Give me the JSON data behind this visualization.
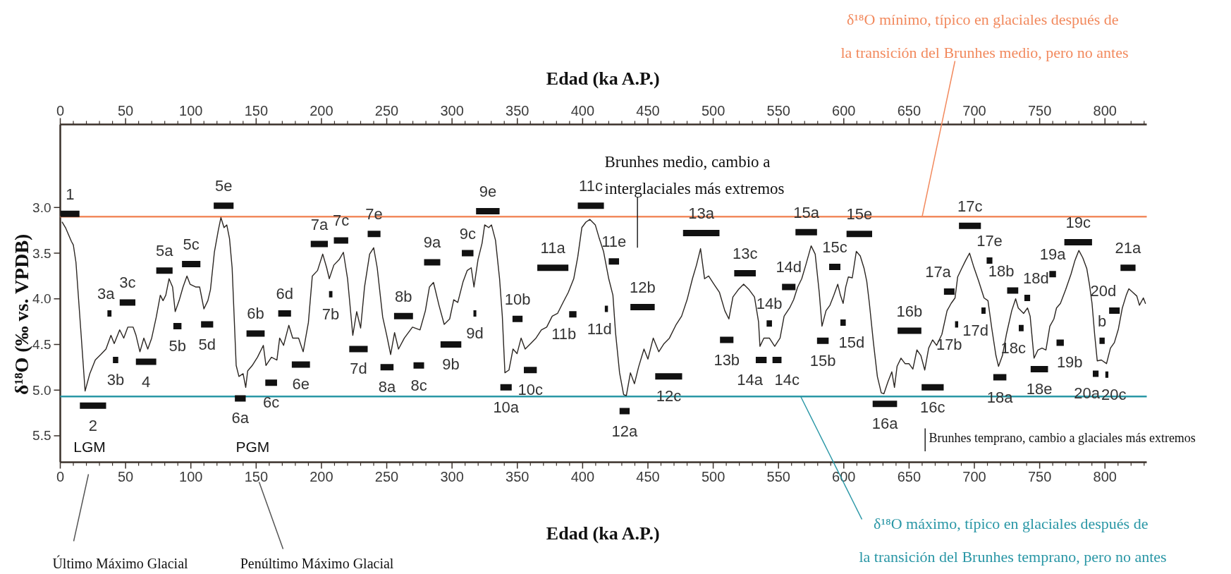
{
  "chart_data": {
    "type": "line",
    "xlabel": "Edad (ka A.P.)",
    "x2label": "Edad (ka A.P.)",
    "ylabel": "δ¹⁸O (‰ vs. VPDB)",
    "xlim": [
      0,
      832
    ],
    "x2lim": [
      0,
      832
    ],
    "ylim": [
      5.79,
      2.09
    ],
    "xticks": [
      0,
      {
        "value": 10,
        "label": null
      },
      {
        "value": 20,
        "label": null
      },
      {
        "value": 30,
        "label": null
      },
      {
        "value": 40,
        "label": null
      },
      50,
      {
        "value": 60,
        "label": null
      },
      {
        "value": 70,
        "label": null
      },
      {
        "value": 80,
        "label": null
      },
      {
        "value": 90,
        "label": null
      },
      100,
      {
        "value": 110,
        "label": null
      },
      {
        "value": 120,
        "label": null
      },
      {
        "value": 130,
        "label": null
      },
      {
        "value": 140,
        "label": null
      },
      150,
      {
        "value": 160,
        "label": null
      },
      {
        "value": 170,
        "label": null
      },
      {
        "value": 180,
        "label": null
      },
      {
        "value": 190,
        "label": null
      },
      200,
      {
        "value": 210,
        "label": null
      },
      {
        "value": 220,
        "label": null
      },
      {
        "value": 230,
        "label": null
      },
      {
        "value": 240,
        "label": null
      },
      250,
      {
        "value": 260,
        "label": null
      },
      {
        "value": 270,
        "label": null
      },
      {
        "value": 280,
        "label": null
      },
      {
        "value": 290,
        "label": null
      },
      300,
      {
        "value": 310,
        "label": null
      },
      {
        "value": 320,
        "label": null
      },
      {
        "value": 330,
        "label": null
      },
      {
        "value": 340,
        "label": null
      },
      350,
      {
        "value": 360,
        "label": null
      },
      {
        "value": 370,
        "label": null
      },
      {
        "value": 380,
        "label": null
      },
      {
        "value": 390,
        "label": null
      },
      400,
      {
        "value": 410,
        "label": null
      },
      {
        "value": 420,
        "label": null
      },
      {
        "value": 430,
        "label": null
      },
      {
        "value": 440,
        "label": null
      },
      450,
      {
        "value": 460,
        "label": null
      },
      {
        "value": 470,
        "label": null
      },
      {
        "value": 480,
        "label": null
      },
      {
        "value": 490,
        "label": null
      },
      500,
      {
        "value": 510,
        "label": null
      },
      {
        "value": 520,
        "label": null
      },
      {
        "value": 530,
        "label": null
      },
      {
        "value": 540,
        "label": null
      },
      550,
      {
        "value": 560,
        "label": null
      },
      {
        "value": 570,
        "label": null
      },
      {
        "value": 580,
        "label": null
      },
      {
        "value": 590,
        "label": null
      },
      600,
      {
        "value": 610,
        "label": null
      },
      {
        "value": 620,
        "label": null
      },
      {
        "value": 630,
        "label": null
      },
      {
        "value": 640,
        "label": null
      },
      650,
      {
        "value": 660,
        "label": null
      },
      {
        "value": 670,
        "label": null
      },
      {
        "value": 680,
        "label": null
      },
      {
        "value": 690,
        "label": null
      },
      700,
      {
        "value": 710,
        "label": null
      },
      {
        "value": 720,
        "label": null
      },
      {
        "value": 730,
        "label": null
      },
      {
        "value": 740,
        "label": null
      },
      750,
      {
        "value": 760,
        "label": null
      },
      {
        "value": 770,
        "label": null
      },
      {
        "value": 780,
        "label": null
      },
      {
        "value": 790,
        "label": null
      },
      800,
      {
        "value": 810,
        "label": null
      },
      {
        "value": 820,
        "label": null
      },
      {
        "value": 830,
        "label": null
      }
    ],
    "x2ticks": [
      0,
      {
        "value": 10,
        "label": null
      },
      {
        "value": 20,
        "label": null
      },
      {
        "value": 30,
        "label": null
      },
      {
        "value": 40,
        "label": null
      },
      50,
      {
        "value": 60,
        "label": null
      },
      {
        "value": 70,
        "label": null
      },
      {
        "value": 80,
        "label": null
      },
      {
        "value": 90,
        "label": null
      },
      100,
      {
        "value": 110,
        "label": null
      },
      {
        "value": 120,
        "label": null
      },
      {
        "value": 130,
        "label": null
      },
      {
        "value": 140,
        "label": null
      },
      150,
      {
        "value": 160,
        "label": null
      },
      {
        "value": 170,
        "label": null
      },
      {
        "value": 180,
        "label": null
      },
      {
        "value": 190,
        "label": null
      },
      200,
      {
        "value": 210,
        "label": null
      },
      {
        "value": 220,
        "label": null
      },
      {
        "value": 230,
        "label": null
      },
      {
        "value": 240,
        "label": null
      },
      250,
      {
        "value": 260,
        "label": null
      },
      {
        "value": 270,
        "label": null
      },
      {
        "value": 280,
        "label": null
      },
      {
        "value": 290,
        "label": null
      },
      300,
      {
        "value": 310,
        "label": null
      },
      {
        "value": 320,
        "label": null
      },
      {
        "value": 330,
        "label": null
      },
      {
        "value": 340,
        "label": null
      },
      350,
      {
        "value": 360,
        "label": null
      },
      {
        "value": 370,
        "label": null
      },
      {
        "value": 380,
        "label": null
      },
      {
        "value": 390,
        "label": null
      },
      400,
      {
        "value": 410,
        "label": null
      },
      {
        "value": 420,
        "label": null
      },
      {
        "value": 430,
        "label": null
      },
      {
        "value": 440,
        "label": null
      },
      450,
      {
        "value": 460,
        "label": null
      },
      {
        "value": 470,
        "label": null
      },
      {
        "value": 480,
        "label": null
      },
      {
        "value": 490,
        "label": null
      },
      500,
      {
        "value": 510,
        "label": null
      },
      {
        "value": 520,
        "label": null
      },
      {
        "value": 530,
        "label": null
      },
      {
        "value": 540,
        "label": null
      },
      550,
      {
        "value": 560,
        "label": null
      },
      {
        "value": 570,
        "label": null
      },
      {
        "value": 580,
        "label": null
      },
      {
        "value": 590,
        "label": null
      },
      600,
      {
        "value": 610,
        "label": null
      },
      {
        "value": 620,
        "label": null
      },
      {
        "value": 630,
        "label": null
      },
      {
        "value": 640,
        "label": null
      },
      650,
      {
        "value": 660,
        "label": null
      },
      {
        "value": 670,
        "label": null
      },
      {
        "value": 680,
        "label": null
      },
      {
        "value": 690,
        "label": null
      },
      700,
      {
        "value": 710,
        "label": null
      },
      {
        "value": 720,
        "label": null
      },
      {
        "value": 730,
        "label": null
      },
      {
        "value": 740,
        "label": null
      },
      750,
      {
        "value": 760,
        "label": null
      },
      {
        "value": 770,
        "label": null
      },
      {
        "value": 780,
        "label": null
      },
      {
        "value": 790,
        "label": null
      },
      800,
      {
        "value": 810,
        "label": null
      },
      {
        "value": 820,
        "label": null
      },
      {
        "value": 830,
        "label": null
      }
    ],
    "yticks": [
      {
        "value": 3,
        "label": "3.0"
      },
      {
        "value": 3.5,
        "label": "3.5"
      },
      {
        "value": 4,
        "label": "4.0"
      },
      {
        "value": 4.5,
        "label": "4.5"
      },
      {
        "value": 5,
        "label": "5.0"
      },
      {
        "value": 5.5,
        "label": "5.5"
      }
    ],
    "series": [
      {
        "color": "#2b2622",
        "x": [
          1.5,
          4,
          8.5,
          10,
          12,
          15.6,
          19,
          22.6,
          26.8,
          31,
          35,
          38.8,
          41.3,
          45.5,
          48.6,
          51.7,
          55.8,
          58,
          61,
          64,
          67,
          70,
          73.5,
          76.6,
          78.7,
          80.8,
          83.3,
          86,
          88,
          91,
          94,
          97,
          99.4,
          103.6,
          106.7,
          110,
          113,
          115,
          118,
          121,
          123,
          125.4,
          127.5,
          129.6,
          131.6,
          134.7,
          136.8,
          140,
          142,
          143.5,
          147,
          151,
          155.5,
          157.5,
          161.7,
          165.9,
          168,
          171,
          175,
          178,
          182.5,
          186,
          190,
          193,
          197,
          201,
          204,
          206,
          209.5,
          213.6,
          216.8,
          220,
          224,
          227,
          230,
          233,
          236.9,
          240,
          242.7,
          246.9,
          250,
          253,
          256,
          259,
          263.5,
          269.7,
          275.5,
          279.6,
          282.7,
          285.8,
          290,
          294,
          298.2,
          301.3,
          304.4,
          308.5,
          311.6,
          314.7,
          316.8,
          319.9,
          323,
          325,
          328.1,
          330.2,
          333.3,
          336.4,
          338.5,
          340.5,
          343.6,
          346.7,
          349.8,
          352.9,
          356,
          360.2,
          364.3,
          368.4,
          372.5,
          376.7,
          380.8,
          385,
          389,
          393.2,
          396.3,
          399.4,
          402.5,
          405.6,
          409.7,
          412.8,
          416,
          420,
          423.2,
          425.2,
          428.3,
          431.4,
          433.5,
          436.6,
          439.7,
          442.8,
          447,
          450,
          454.1,
          458.3,
          462.4,
          466.5,
          471.7,
          475.8,
          480,
          484.1,
          487.2,
          490.3,
          493.4,
          496.5,
          500.6,
          504.8,
          508.9,
          512,
          515.1,
          519.2,
          523.3,
          527.5,
          531.6,
          534.7,
          535.8,
          538.8,
          543,
          547.1,
          551.2,
          554.3,
          558.5,
          561.6,
          564.7,
          567.8,
          570.9,
          575,
          578.1,
          581.2,
          583.3,
          586.4,
          589.4,
          592.4,
          595.4,
          597.4,
          599.5,
          601.5,
          603.5,
          606.5,
          609.6,
          612.6,
          615.6,
          617.6,
          619.6,
          622.7,
          625.7,
          628.7,
          630.7,
          633.8,
          636.8,
          638.8,
          640.8,
          643.8,
          646.9,
          649.9,
          652.9,
          656,
          659,
          662,
          665,
          668,
          671.1,
          675.1,
          679.1,
          682.2,
          685.2,
          687.2,
          690.2,
          693.3,
          696.3,
          699.3,
          703.4,
          707.4,
          710.4,
          713.4,
          716.5,
          718.5,
          721.5,
          724.5,
          728.6,
          731.6,
          733.6,
          737.7,
          740.7,
          742.7,
          745.7,
          748.7,
          751.8,
          754.8,
          757.8,
          760.9,
          762.9,
          765.9,
          769.9,
          774,
          777,
          780,
          783,
          786.1,
          788.1,
          790.1,
          792.1,
          794.1,
          797.2,
          801.2,
          804.2,
          807.2,
          810.3,
          813.3,
          816.3,
          818.3,
          821.4,
          824.4,
          826.4,
          829.4,
          831
        ],
        "values": [
          3.16,
          3.22,
          3.37,
          3.41,
          3.6,
          4.32,
          5.01,
          4.82,
          4.67,
          4.61,
          4.55,
          4.4,
          4.49,
          4.34,
          4.43,
          4.31,
          4.31,
          4.4,
          4.58,
          4.43,
          4.55,
          4.43,
          4.2,
          3.96,
          4.02,
          3.96,
          3.78,
          3.87,
          4.14,
          4.02,
          3.87,
          3.75,
          3.84,
          3.87,
          3.87,
          4.11,
          4.02,
          3.9,
          3.49,
          3.25,
          3.11,
          3.22,
          3.19,
          3.34,
          3.66,
          4.73,
          4.85,
          4.82,
          4.97,
          4.79,
          4.73,
          4.64,
          4.51,
          4.73,
          4.64,
          4.67,
          4.43,
          4.51,
          4.29,
          4.43,
          4.43,
          4.58,
          4.26,
          3.75,
          3.69,
          3.51,
          3.66,
          3.78,
          3.63,
          3.57,
          3.49,
          3.78,
          4.4,
          4.14,
          4.32,
          3.87,
          3.51,
          3.44,
          3.66,
          4.2,
          4.4,
          4.61,
          4.37,
          4.55,
          4.43,
          4.31,
          4.34,
          4.13,
          3.87,
          3.82,
          4.07,
          4.28,
          4.22,
          4.01,
          4.04,
          3.81,
          3.69,
          3.66,
          3.87,
          3.57,
          3.39,
          3.19,
          3.22,
          3.19,
          3.36,
          3.78,
          4.19,
          4.81,
          4.78,
          4.55,
          4.6,
          4.43,
          4.55,
          4.49,
          4.43,
          4.34,
          4.31,
          4.19,
          4.16,
          4.04,
          3.93,
          3.78,
          3.54,
          3.22,
          3.16,
          3.13,
          3.19,
          3.34,
          3.48,
          3.78,
          3.96,
          4.37,
          4.81,
          5.05,
          5.06,
          4.81,
          4.93,
          4.75,
          4.55,
          4.66,
          4.43,
          4.58,
          4.49,
          4.43,
          4.28,
          4.19,
          4.01,
          3.78,
          3.63,
          3.45,
          3.78,
          3.75,
          3.84,
          3.93,
          4.13,
          4.22,
          3.98,
          3.9,
          3.84,
          3.9,
          3.98,
          4.25,
          4.52,
          4.43,
          4.43,
          4.52,
          4.43,
          4.19,
          4.1,
          4.01,
          3.87,
          3.78,
          3.63,
          3.42,
          3.51,
          3.93,
          4.3,
          4.13,
          4.07,
          3.96,
          3.84,
          3.96,
          4.05,
          3.87,
          3.76,
          3.77,
          3.48,
          3.53,
          3.67,
          3.81,
          4.05,
          4.48,
          4.85,
          5.03,
          5.04,
          4.91,
          4.8,
          4.97,
          4.74,
          4.65,
          4.71,
          4.71,
          4.77,
          4.56,
          4.62,
          4.78,
          4.54,
          4.45,
          4.51,
          4.39,
          4.13,
          4.05,
          3.99,
          3.76,
          3.67,
          3.58,
          3.5,
          3.64,
          3.81,
          3.99,
          4.02,
          4.33,
          4.62,
          4.74,
          4.62,
          4.39,
          4.13,
          4,
          4.1,
          4.16,
          4.1,
          4.19,
          4.65,
          4.56,
          4.54,
          4.56,
          4.3,
          4.22,
          4.1,
          4.05,
          3.9,
          3.73,
          3.58,
          3.47,
          3.55,
          3.67,
          3.84,
          4.05,
          4.39,
          4.68,
          4.67,
          4.71,
          4.54,
          4.48,
          4.33,
          4.1,
          3.96,
          3.89,
          3.93,
          3.97,
          4.07,
          3.99,
          4.05
        ]
      },
      {
        "type": "line",
        "color": "#111111",
        "x": [
          0.2,
          14.7,
          null,
          15,
          35.1,
          null,
          36.1,
          39.2,
          null,
          40.3,
          44.4,
          null,
          45.5,
          57.5,
          null,
          57.9,
          73.5,
          null,
          73.5,
          86,
          null,
          86.6,
          92.8,
          null,
          93.2,
          107.3,
          null,
          107.8,
          117.1,
          null,
          117.5,
          132.7,
          null,
          133.7,
          142,
          null,
          142.6,
          156.5,
          null,
          157,
          166,
          null,
          166.9,
          176.7,
          null,
          177.3,
          191.2,
          null,
          191.8,
          204.9,
          null,
          205.8,
          208.4,
          null,
          209.5,
          220.5,
          null,
          221.3,
          235.4,
          null,
          235.4,
          245.2,
          null,
          245.2,
          255.2,
          null,
          255.6,
          270.1,
          null,
          270.5,
          278.6,
          null,
          278.6,
          291,
          null,
          291.2,
          307.1,
          null,
          307.5,
          316.4,
          null,
          316.4,
          318.6,
          null,
          318.4,
          336.4,
          null,
          337,
          345.7,
          null,
          346.3,
          354,
          null,
          355,
          364.9,
          null,
          365.3,
          389.1,
          null,
          389.7,
          395.3,
          null,
          396.3,
          416.3,
          null,
          417,
          419.4,
          null,
          420,
          427.9,
          null,
          428.3,
          436,
          null,
          436.6,
          455.2,
          null,
          455.6,
          476.2,
          null,
          476.9,
          504.8,
          null,
          505.2,
          515.5,
          null,
          516.1,
          532.6,
          null,
          532.6,
          540.9,
          null,
          540.9,
          545,
          null,
          545.4,
          552.3,
          null,
          552.7,
          563,
          null,
          563,
          579.5,
          null,
          579.5,
          588.4,
          null,
          588.8,
          597.4,
          null,
          597.4,
          601.5,
          null,
          602.1,
          621.7,
          null,
          622.1,
          640.8,
          null,
          641.2,
          659.4,
          null,
          659.6,
          676.5,
          null,
          676.7,
          684.8,
          null,
          685.2,
          687.6,
          null,
          688.2,
          705,
          null,
          705.4,
          708.6,
          null,
          709.4,
          713.8,
          null,
          714.5,
          724.5,
          null,
          725.1,
          733.6,
          null,
          734,
          737.7,
          null,
          738.3,
          742.7,
          null,
          743.1,
          756.4,
          null,
          757.4,
          762.5,
          null,
          762.9,
          768.5,
          null,
          768.9,
          790.1,
          null,
          790.7,
          795.1,
          null,
          795.8,
          799.8,
          null,
          800.3,
          802.6,
          null,
          803.2,
          811.3,
          null,
          811.9,
          823.4
        ],
        "values": [
          3.07,
          3.07,
          null,
          5.17,
          5.17,
          null,
          4.16,
          4.16,
          null,
          4.67,
          4.67,
          null,
          4.04,
          4.04,
          null,
          4.69,
          4.69,
          null,
          3.69,
          3.69,
          null,
          4.3,
          4.3,
          null,
          3.62,
          3.62,
          null,
          4.28,
          4.28,
          null,
          2.98,
          2.98,
          null,
          5.09,
          5.09,
          null,
          4.38,
          4.38,
          null,
          4.92,
          4.92,
          null,
          4.16,
          4.16,
          null,
          4.72,
          4.72,
          null,
          3.4,
          3.4,
          null,
          3.95,
          3.95,
          null,
          3.36,
          3.36,
          null,
          4.55,
          4.55,
          null,
          3.29,
          3.29,
          null,
          4.75,
          4.75,
          null,
          4.19,
          4.19,
          null,
          4.73,
          4.73,
          null,
          3.6,
          3.6,
          null,
          4.5,
          4.5,
          null,
          3.5,
          3.5,
          null,
          4.16,
          4.16,
          null,
          3.04,
          3.04,
          null,
          4.97,
          4.97,
          null,
          4.22,
          4.22,
          null,
          4.78,
          4.78,
          null,
          3.66,
          3.66,
          null,
          4.17,
          4.17,
          null,
          2.98,
          2.98,
          null,
          4.11,
          4.11,
          null,
          3.59,
          3.59,
          null,
          5.23,
          5.23,
          null,
          4.09,
          4.09,
          null,
          4.85,
          4.85,
          null,
          3.28,
          3.28,
          null,
          4.45,
          4.45,
          null,
          3.72,
          3.72,
          null,
          4.67,
          4.67,
          null,
          4.27,
          4.27,
          null,
          4.67,
          4.67,
          null,
          3.87,
          3.87,
          null,
          3.27,
          3.27,
          null,
          4.46,
          4.46,
          null,
          3.65,
          3.65,
          null,
          4.26,
          4.26,
          null,
          3.29,
          3.29,
          null,
          5.15,
          5.15,
          null,
          4.35,
          4.35,
          null,
          4.97,
          4.97,
          null,
          3.92,
          3.92,
          null,
          4.28,
          4.28,
          null,
          3.2,
          3.2,
          null,
          4.13,
          4.13,
          null,
          3.58,
          3.58,
          null,
          4.86,
          4.86,
          null,
          3.91,
          3.91,
          null,
          4.32,
          4.32,
          null,
          3.99,
          3.99,
          null,
          4.77,
          4.77,
          null,
          3.73,
          3.73,
          null,
          4.48,
          4.48,
          null,
          3.38,
          3.38,
          null,
          4.82,
          4.82,
          null,
          4.46,
          4.46,
          null,
          4.83,
          4.83,
          null,
          4.13,
          4.13,
          null,
          3.66,
          3.66
        ]
      }
    ],
    "ref_lines": [
      {
        "axis": "y",
        "value": 3.1,
        "color": "#f28a5e"
      },
      {
        "axis": "y",
        "value": 5.07,
        "color": "#2a97a6"
      }
    ],
    "annotations": [
      "Brunhes medio, cambio a\ninterglaciales más extremos",
      "Brunhes temprano, cambio a glaciales más extremos",
      "Último Máximo Glacial",
      "Penúltimo Máximo Glacial",
      "LGM",
      "PGM",
      {
        "text": "δ¹⁸O mínimo,  típico en glaciales después de\nla transición del Brunhes medio, pero no antes",
        "x": 660,
        "y": 3.1
      },
      {
        "text": "δ¹⁸O máximo,  típico en glaciales después de\nla transición del Brunhes temprano, pero no antes",
        "x": 567,
        "y": 5.07
      },
      {
        "text": "1",
        "x": 7.45,
        "y": 3.07
      },
      {
        "text": "2",
        "x": 25.05,
        "y": 5.17
      },
      {
        "text": "3a",
        "x": 36.1,
        "y": 4.16
      },
      {
        "text": "3b",
        "x": 42.35,
        "y": 4.67
      },
      {
        "text": "3c",
        "x": 51.5,
        "y": 4.04
      },
      {
        "text": "4",
        "x": 65.7,
        "y": 4.69
      },
      {
        "text": "5a",
        "x": 79.75,
        "y": 3.69
      },
      {
        "text": "5b",
        "x": 89.7,
        "y": 4.3
      },
      {
        "text": "5c",
        "x": 100.25,
        "y": 3.62
      },
      {
        "text": "5d",
        "x": 112.45,
        "y": 4.28
      },
      {
        "text": "5e",
        "x": 125.1,
        "y": 2.98
      },
      {
        "text": "6a",
        "x": 137.85,
        "y": 5.09
      },
      {
        "text": "6b",
        "x": 149.55,
        "y": 4.38
      },
      {
        "text": "6c",
        "x": 161.5,
        "y": 4.92
      },
      {
        "text": "6d",
        "x": 171.8,
        "y": 4.16
      },
      {
        "text": "6e",
        "x": 184.25,
        "y": 4.72
      },
      {
        "text": "7a",
        "x": 198.35,
        "y": 3.4
      },
      {
        "text": "7b",
        "x": 207.1,
        "y": 3.95
      },
      {
        "text": "7c",
        "x": 215,
        "y": 3.36
      },
      {
        "text": "7d",
        "x": 228.35,
        "y": 4.55
      },
      {
        "text": "7e",
        "x": 240.3,
        "y": 3.29
      },
      {
        "text": "8a",
        "x": 250.2,
        "y": 4.75
      },
      {
        "text": "8b",
        "x": 262.85,
        "y": 4.19
      },
      {
        "text": "8c",
        "x": 274.55,
        "y": 4.73
      },
      {
        "text": "9a",
        "x": 284.8,
        "y": 3.6
      },
      {
        "text": "9b",
        "x": 299.15,
        "y": 4.5
      },
      {
        "text": "9c",
        "x": 311.95,
        "y": 3.5
      },
      {
        "text": "9d",
        "x": 317.5,
        "y": 4.16
      },
      {
        "text": "9e",
        "x": 327.4,
        "y": 3.04
      },
      {
        "text": "10a",
        "x": 341.35,
        "y": 4.97
      },
      {
        "text": "10b",
        "x": 350.15,
        "y": 4.22
      },
      {
        "text": "10c",
        "x": 359.95,
        "y": 4.78
      },
      {
        "text": "11a",
        "x": 377.2,
        "y": 3.66
      },
      {
        "text": "11b",
        "x": 389.7,
        "y": 4.17
      },
      {
        "text": "11c",
        "x": 406.3,
        "y": 2.98
      },
      {
        "text": "11d",
        "x": 417,
        "y": 4.11
      },
      {
        "text": "11e",
        "x": 423.95,
        "y": 3.59
      },
      {
        "text": "12a",
        "x": 432.15,
        "y": 5.23
      },
      {
        "text": "12b",
        "x": 445.9,
        "y": 4.09
      },
      {
        "text": "12c",
        "x": 465.9,
        "y": 4.85
      },
      {
        "text": "13a",
        "x": 490.85,
        "y": 3.28
      },
      {
        "text": "13b",
        "x": 510.35,
        "y": 4.45
      },
      {
        "text": "13c",
        "x": 524.35,
        "y": 3.72
      },
      {
        "text": "14a",
        "x": 532.6,
        "y": 4.67
      },
      {
        "text": "14b",
        "x": 542.95,
        "y": 4.27
      },
      {
        "text": "14c",
        "x": 552.3,
        "y": 4.67
      },
      {
        "text": "14d",
        "x": 557.85,
        "y": 3.87
      },
      {
        "text": "15a",
        "x": 571.25,
        "y": 3.27
      },
      {
        "text": "15b",
        "x": 583.95,
        "y": 4.46
      },
      {
        "text": "15c",
        "x": 593.1,
        "y": 3.65
      },
      {
        "text": "15d",
        "x": 601.5,
        "y": 4.26
      },
      {
        "text": "15e",
        "x": 611.9,
        "y": 3.29
      },
      {
        "text": "16a",
        "x": 631.45,
        "y": 5.15
      },
      {
        "text": "16b",
        "x": 650.3,
        "y": 4.35
      },
      {
        "text": "16c",
        "x": 668.05,
        "y": 4.97
      },
      {
        "text": "17a",
        "x": 676.7,
        "y": 3.92
      },
      {
        "text": "17b",
        "x": 685.2,
        "y": 4.28
      },
      {
        "text": "17c",
        "x": 696.6,
        "y": 3.2
      },
      {
        "text": "17d",
        "x": 705.4,
        "y": 4.13
      },
      {
        "text": "17e",
        "x": 711.6,
        "y": 3.58
      },
      {
        "text": "18a",
        "x": 719.5,
        "y": 4.86
      },
      {
        "text": "18b",
        "x": 725.1,
        "y": 3.91
      },
      {
        "text": "18c",
        "x": 734,
        "y": 4.32
      },
      {
        "text": "18d",
        "x": 742.7,
        "y": 3.99
      },
      {
        "text": "18e",
        "x": 749.75,
        "y": 4.77
      },
      {
        "text": "19a",
        "x": 759.95,
        "y": 3.73
      },
      {
        "text": "19b",
        "x": 768.5,
        "y": 4.48
      },
      {
        "text": "19c",
        "x": 779.5,
        "y": 3.38
      },
      {
        "text": "20a",
        "x": 790.7,
        "y": 4.82
      },
      {
        "text": "b",
        "x": 797.8,
        "y": 4.46
      },
      {
        "text": "20c",
        "x": 802.6,
        "y": 4.83
      },
      {
        "text": "20d",
        "x": 803.2,
        "y": 4.13
      },
      {
        "text": "21a",
        "x": 817.65,
        "y": 3.66
      }
    ]
  }
}
